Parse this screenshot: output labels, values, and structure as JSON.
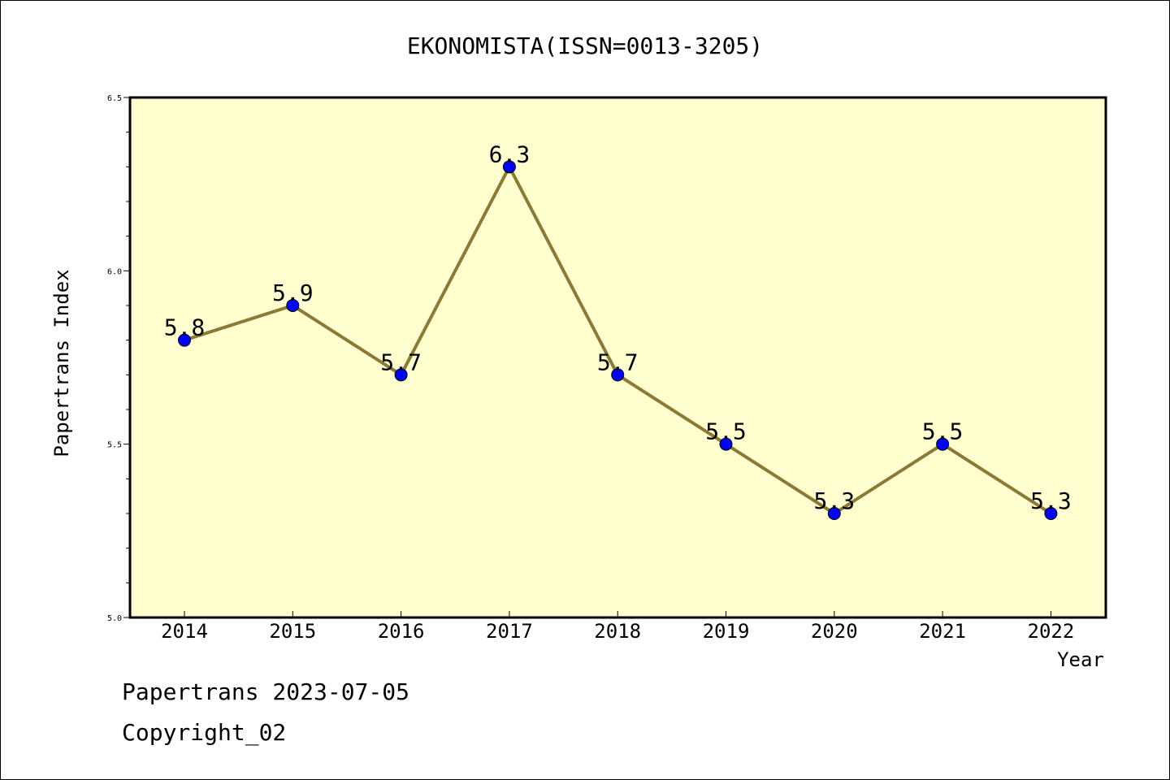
{
  "chart_data": {
    "type": "line",
    "title": "EKONOMISTA(ISSN=0013-3205)",
    "xlabel": "Year",
    "ylabel": "Papertrans Index",
    "categories": [
      "2014",
      "2015",
      "2016",
      "2017",
      "2018",
      "2019",
      "2020",
      "2021",
      "2022"
    ],
    "series": [
      {
        "values": [
          5.8,
          5.9,
          5.7,
          6.3,
          5.7,
          5.5,
          5.3,
          5.5,
          5.3
        ]
      }
    ],
    "data_labels": [
      "5.8",
      "5.9",
      "5.7",
      "6.3",
      "5.7",
      "5.5",
      "5.3",
      "5.5",
      "5.3"
    ],
    "ylim": [
      5.0,
      6.5
    ],
    "y_ticks": [
      "5.0",
      "5.5",
      "6.0",
      "6.5"
    ],
    "grid": false,
    "colors": {
      "plot_bg": "#ffffd0",
      "line": "#8b7a35",
      "marker": "#0000ff"
    }
  },
  "footer": {
    "line1": "Papertrans 2023-07-05",
    "line2": "Copyright_02"
  }
}
